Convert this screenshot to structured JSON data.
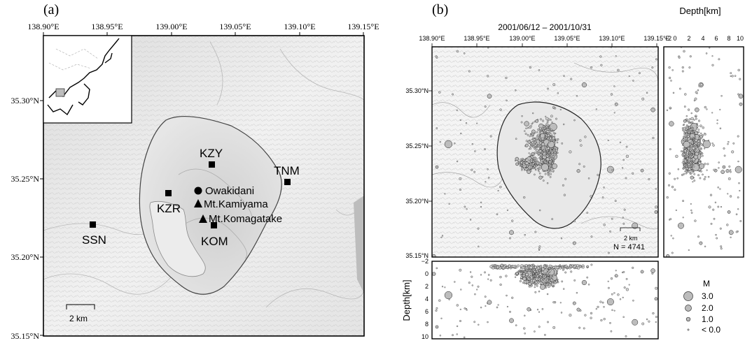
{
  "panel_a": {
    "label": "(a)",
    "lon_ticks": [
      "138.90°E",
      "138.95°E",
      "139.00°E",
      "139.05°E",
      "139.10°E",
      "139.15°E"
    ],
    "lat_ticks": [
      "35.30°N",
      "35.25°N",
      "35.20°N",
      "35.15°N"
    ],
    "stations": [
      "KZY",
      "TNM",
      "KZR",
      "SSN",
      "KOM"
    ],
    "features": {
      "owakidani": "Owakidani",
      "kamiyama": "Mt.Kamiyama",
      "komagatake": "Mt.Komagatake"
    },
    "scale_bar": "2 km"
  },
  "panel_b": {
    "label": "(b)",
    "period": "2001/06/12 – 2001/10/31",
    "lon_ticks": [
      "138.90°E",
      "138.95°E",
      "139.00°E",
      "139.05°E",
      "139.10°E",
      "139.15°E"
    ],
    "lat_ticks": [
      "35.30°N",
      "35.25°N",
      "35.20°N",
      "35.15°N"
    ],
    "depth_title": "Depth[km]",
    "depth_ticks": [
      "−2",
      "0",
      "2",
      "4",
      "6",
      "8",
      "10"
    ],
    "scale_bar": "2 km",
    "count": "N = 4741",
    "legend": {
      "title": "M",
      "items": [
        "3.0",
        "2.0",
        "1.0",
        "< 0.0"
      ]
    }
  }
}
